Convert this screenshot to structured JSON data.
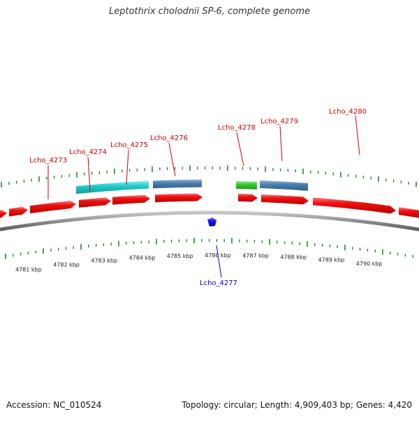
{
  "title": "Leptothrix cholodnii SP-6, complete genome",
  "footer": {
    "accession": "Accession: NC_010524",
    "summary": "Topology: circular; Length: 4,909,403 bp; Genes: 4,420"
  },
  "colors": {
    "backbone": "#8c8c8c",
    "tick": "#1f8a1f",
    "gene_red": "#ee1111",
    "gene_cyan": "#22cccc",
    "gene_steel": "#4a7fb0",
    "gene_green": "#33cc33",
    "gene_blue": "#1a1aee",
    "label_red": "#cc0000",
    "label_blue": "#0000cc"
  },
  "kbp_labels": [
    {
      "kbp": 4781,
      "text": "4781 kbp"
    },
    {
      "kbp": 4782,
      "text": "4782 kbp"
    },
    {
      "kbp": 4783,
      "text": "4783 kbp"
    },
    {
      "kbp": 4784,
      "text": "4784 kbp"
    },
    {
      "kbp": 4785,
      "text": "4785 kbp"
    },
    {
      "kbp": 4786,
      "text": "4786 kbp"
    },
    {
      "kbp": 4787,
      "text": "4787 kbp"
    },
    {
      "kbp": 4788,
      "text": "4788 kbp"
    },
    {
      "kbp": 4789,
      "text": "4789 kbp"
    },
    {
      "kbp": 4790,
      "text": "4790 kbp"
    }
  ],
  "genes": [
    {
      "name": "Lcho_4273",
      "label": "Lcho_4273",
      "track": "forward",
      "type": "CDS",
      "color": "red"
    },
    {
      "name": "Lcho_4274",
      "label": "Lcho_4274",
      "track": "forward",
      "type": "CDS",
      "color": "red"
    },
    {
      "name": "Lcho_4275",
      "label": "Lcho_4275",
      "track": "forward",
      "type": "CDS",
      "color": "red"
    },
    {
      "name": "Lcho_4276",
      "label": "Lcho_4276",
      "track": "forward",
      "type": "CDS",
      "color": "red"
    },
    {
      "name": "Lcho_4277",
      "label": "Lcho_4277",
      "track": "reverse",
      "type": "gene",
      "color": "blue"
    },
    {
      "name": "Lcho_4278",
      "label": "Lcho_4278",
      "track": "forward",
      "type": "CDS",
      "color": "red"
    },
    {
      "name": "Lcho_4279",
      "label": "Lcho_4279",
      "track": "forward",
      "type": "CDS",
      "color": "red"
    },
    {
      "name": "Lcho_4280",
      "label": "Lcho_4280",
      "track": "forward",
      "type": "CDS",
      "color": "red"
    }
  ],
  "feature_colors": [
    "red",
    "cyan",
    "steel",
    "green",
    "blue"
  ]
}
